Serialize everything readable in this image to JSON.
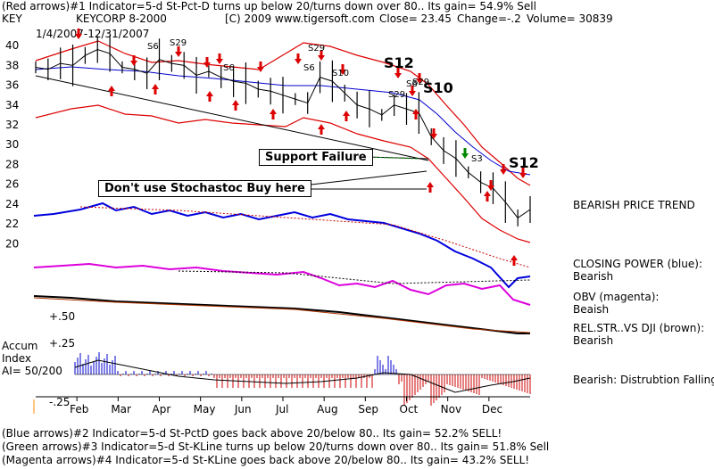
{
  "header": {
    "line1": "(Red arrows)#1 Indicator=5-d St-Pct-D turns up below 20/turns down over 80.. Its gain= 54.9% Sell",
    "ticker": "KEY",
    "company": "KEYCORP 8-2000",
    "copyright": "[C) 2009 www.tigersoft.com",
    "close": "Close=   23.45",
    "change": "Change=-.2",
    "volume": "Volume=   30839",
    "dates": "1/4/2007-12/31/2007"
  },
  "annotations": {
    "support_failure": "Support Failure",
    "stochastic": "Don't use Stochastoc Buy here",
    "signals": [
      "S6",
      "S29",
      "S6",
      "S29",
      "S6",
      "S10",
      "S12",
      "S29",
      "S6",
      "S29",
      "S10",
      "S3",
      "S12"
    ]
  },
  "right_labels": {
    "trend": "BEARISH PRICE TREND",
    "cp_label": "CLOSING POWER (blue):",
    "cp_val": "Bearish",
    "obv_label": "OBV (magenta):",
    "obv_val": "Beaish",
    "rel_label": "REL.STR..VS DJI (brown):",
    "rel_val": "Bearish",
    "accum_text": "Bearish:  Distrubtion Falling."
  },
  "accum": {
    "title": "Accum",
    "index": "Index",
    "ai": "AI= 50/200",
    "plus25": "+.25",
    "minus25": "-.25",
    "plus50": "+.50"
  },
  "footer": {
    "l1": "(Blue arrows)#2 Indicator=5-d St-PctD  goes back above 20/below 80.. Its gain= 52.2% SELL!",
    "l2": "(Green arrows)#3 Indicator=5-d St-KLine turns up below 20/turns down over 80.. Its gain= 51.8% Sell",
    "l3": "(Magenta arrows)#4 Indicator=5-d St-KLine goes back above 20/below 80.. Its gain= 43.2% SELL!"
  },
  "chart_data": {
    "type": "line",
    "title": "KEYCORP 8-2000",
    "xlabel": "",
    "ylabel": "",
    "y_ticks": [
      40,
      38,
      36,
      34,
      32,
      30,
      28,
      26,
      24,
      22,
      20
    ],
    "ylim": [
      18.5,
      41
    ],
    "x_months": [
      "Feb",
      "Mar",
      "Apr",
      "May",
      "Jun",
      "Jul",
      "Aug",
      "Sep",
      "Oct",
      "Nov",
      "Dec"
    ],
    "series": [
      {
        "name": "",
        "color": "#000000",
        "x": [
          0,
          0.3,
          0.6,
          0.9,
          1.2,
          1.5,
          1.8,
          2.1,
          2.4,
          2.7,
          3.0,
          3.3,
          3.6,
          3.9,
          4.2,
          4.5,
          4.8,
          5.1,
          5.4,
          5.7,
          6.0,
          6.3,
          6.6,
          6.9,
          7.2,
          7.5,
          7.8,
          8.1,
          8.4,
          8.7,
          9.0,
          9.3,
          9.6,
          9.9,
          10.2,
          10.5,
          10.8,
          11.1,
          11.4,
          11.7,
          12.0
        ],
        "values": [
          37.8,
          37.6,
          38.2,
          38.0,
          39.0,
          39.6,
          39.2,
          37.8,
          37.6,
          37.2,
          38.6,
          38.2,
          38.0,
          37.0,
          37.4,
          36.8,
          36.4,
          36.2,
          35.6,
          35.4,
          35.0,
          34.6,
          34.2,
          36.8,
          36.4,
          35.2,
          34.0,
          33.6,
          33.0,
          34.0,
          33.6,
          33.2,
          30.8,
          29.4,
          28.6,
          27.2,
          26.2,
          25.6,
          24.2,
          22.6,
          23.45
        ]
      }
    ],
    "legend": "none"
  }
}
